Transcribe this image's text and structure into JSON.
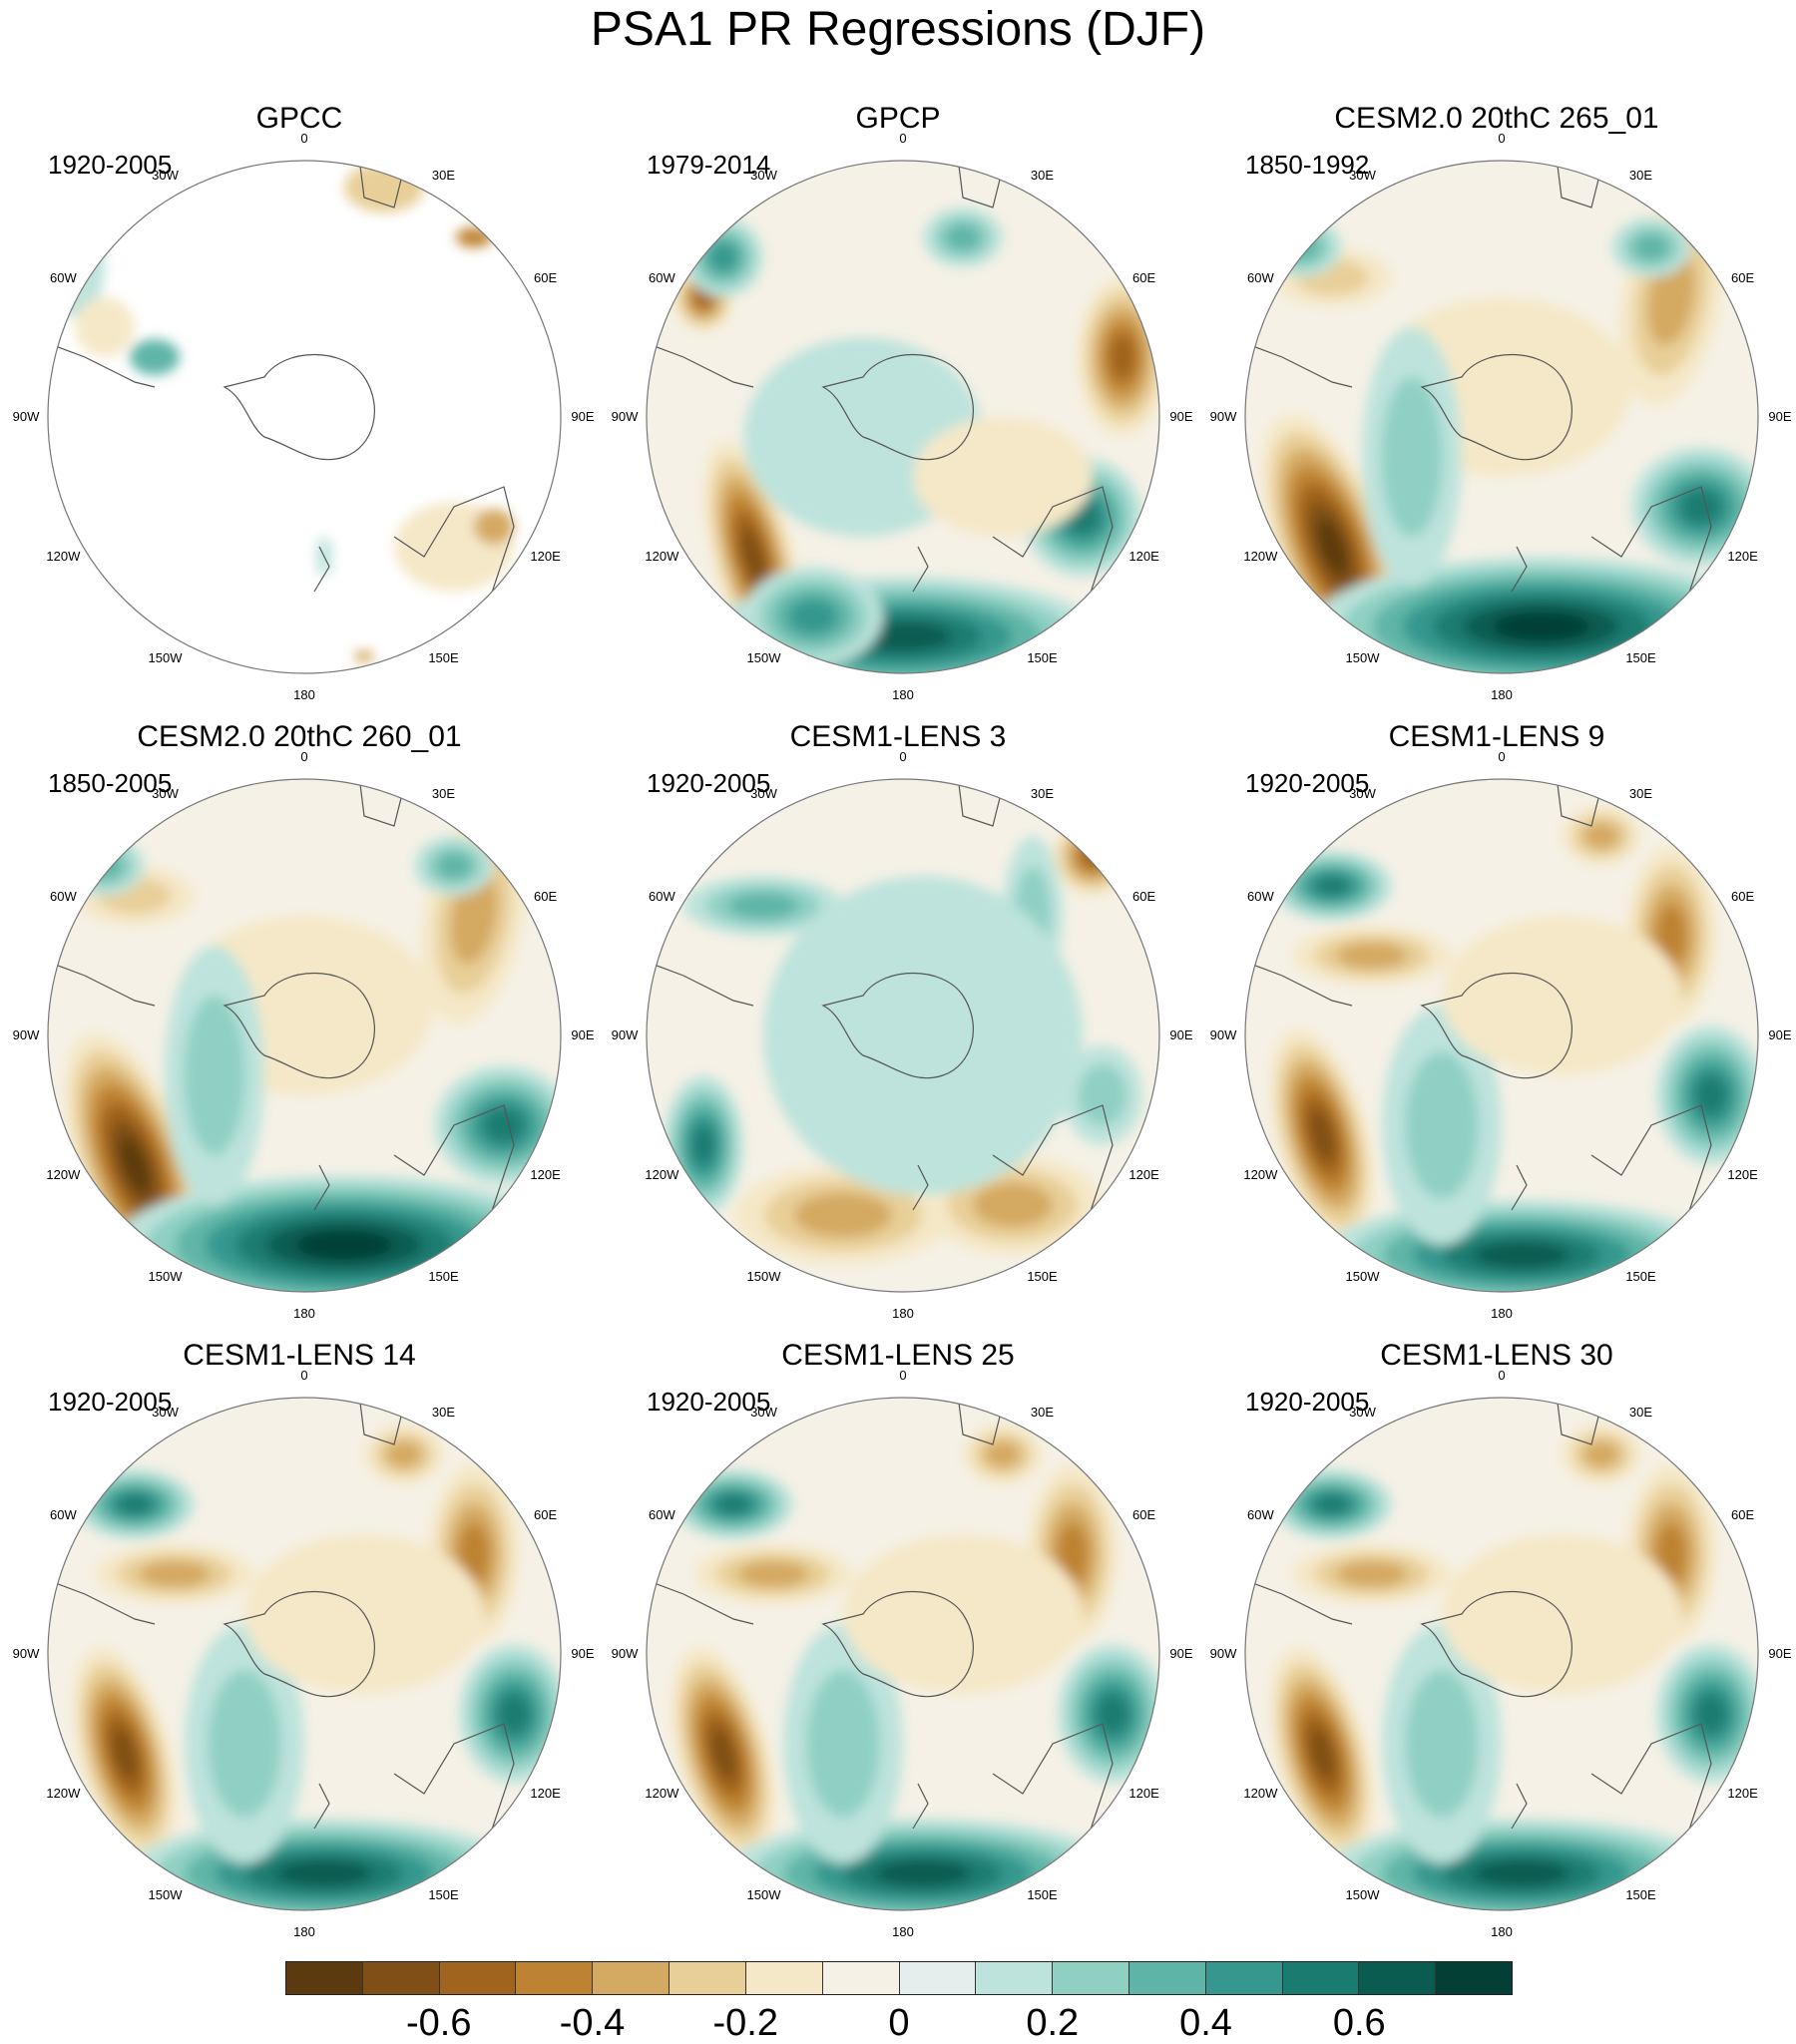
{
  "title": "PSA1 PR Regressions (DJF)",
  "longitude_labels": [
    "0",
    "30E",
    "60E",
    "90E",
    "120E",
    "150E",
    "180",
    "150W",
    "120W",
    "90W",
    "60W",
    "30W"
  ],
  "panels": [
    {
      "title": "GPCC",
      "period": "1920-2005",
      "style": "obs-land"
    },
    {
      "title": "GPCP",
      "period": "1979-2014",
      "style": "obs-full"
    },
    {
      "title": "CESM2.0 20thC 265_01",
      "period": "1850-1992",
      "style": "model-strong"
    },
    {
      "title": "CESM2.0 20thC 260_01",
      "period": "1850-2005",
      "style": "model-strong"
    },
    {
      "title": "CESM1-LENS 3",
      "period": "1920-2005",
      "style": "model-weak"
    },
    {
      "title": "CESM1-LENS 9",
      "period": "1920-2005",
      "style": "model-mid"
    },
    {
      "title": "CESM1-LENS 14",
      "period": "1920-2005",
      "style": "model-mid"
    },
    {
      "title": "CESM1-LENS 25",
      "period": "1920-2005",
      "style": "model-mid"
    },
    {
      "title": "CESM1-LENS 30",
      "period": "1920-2005",
      "style": "model-mid"
    }
  ],
  "colorbar": {
    "colors": [
      "#5c3a10",
      "#7f4f17",
      "#a0641f",
      "#be8332",
      "#d4a962",
      "#e8cf98",
      "#f5e8c8",
      "#f5f1e6",
      "#e4efed",
      "#bde3dc",
      "#8fd0c3",
      "#5eb5a7",
      "#35978e",
      "#1a7b71",
      "#0a5c51",
      "#033f35"
    ],
    "tick_labels": [
      "-0.6",
      "-0.4",
      "-0.2",
      "0",
      "0.2",
      "0.4",
      "0.6"
    ],
    "tick_values": [
      -0.6,
      -0.4,
      -0.2,
      0,
      0.2,
      0.4,
      0.6
    ],
    "range": [
      -0.8,
      0.8
    ]
  }
}
